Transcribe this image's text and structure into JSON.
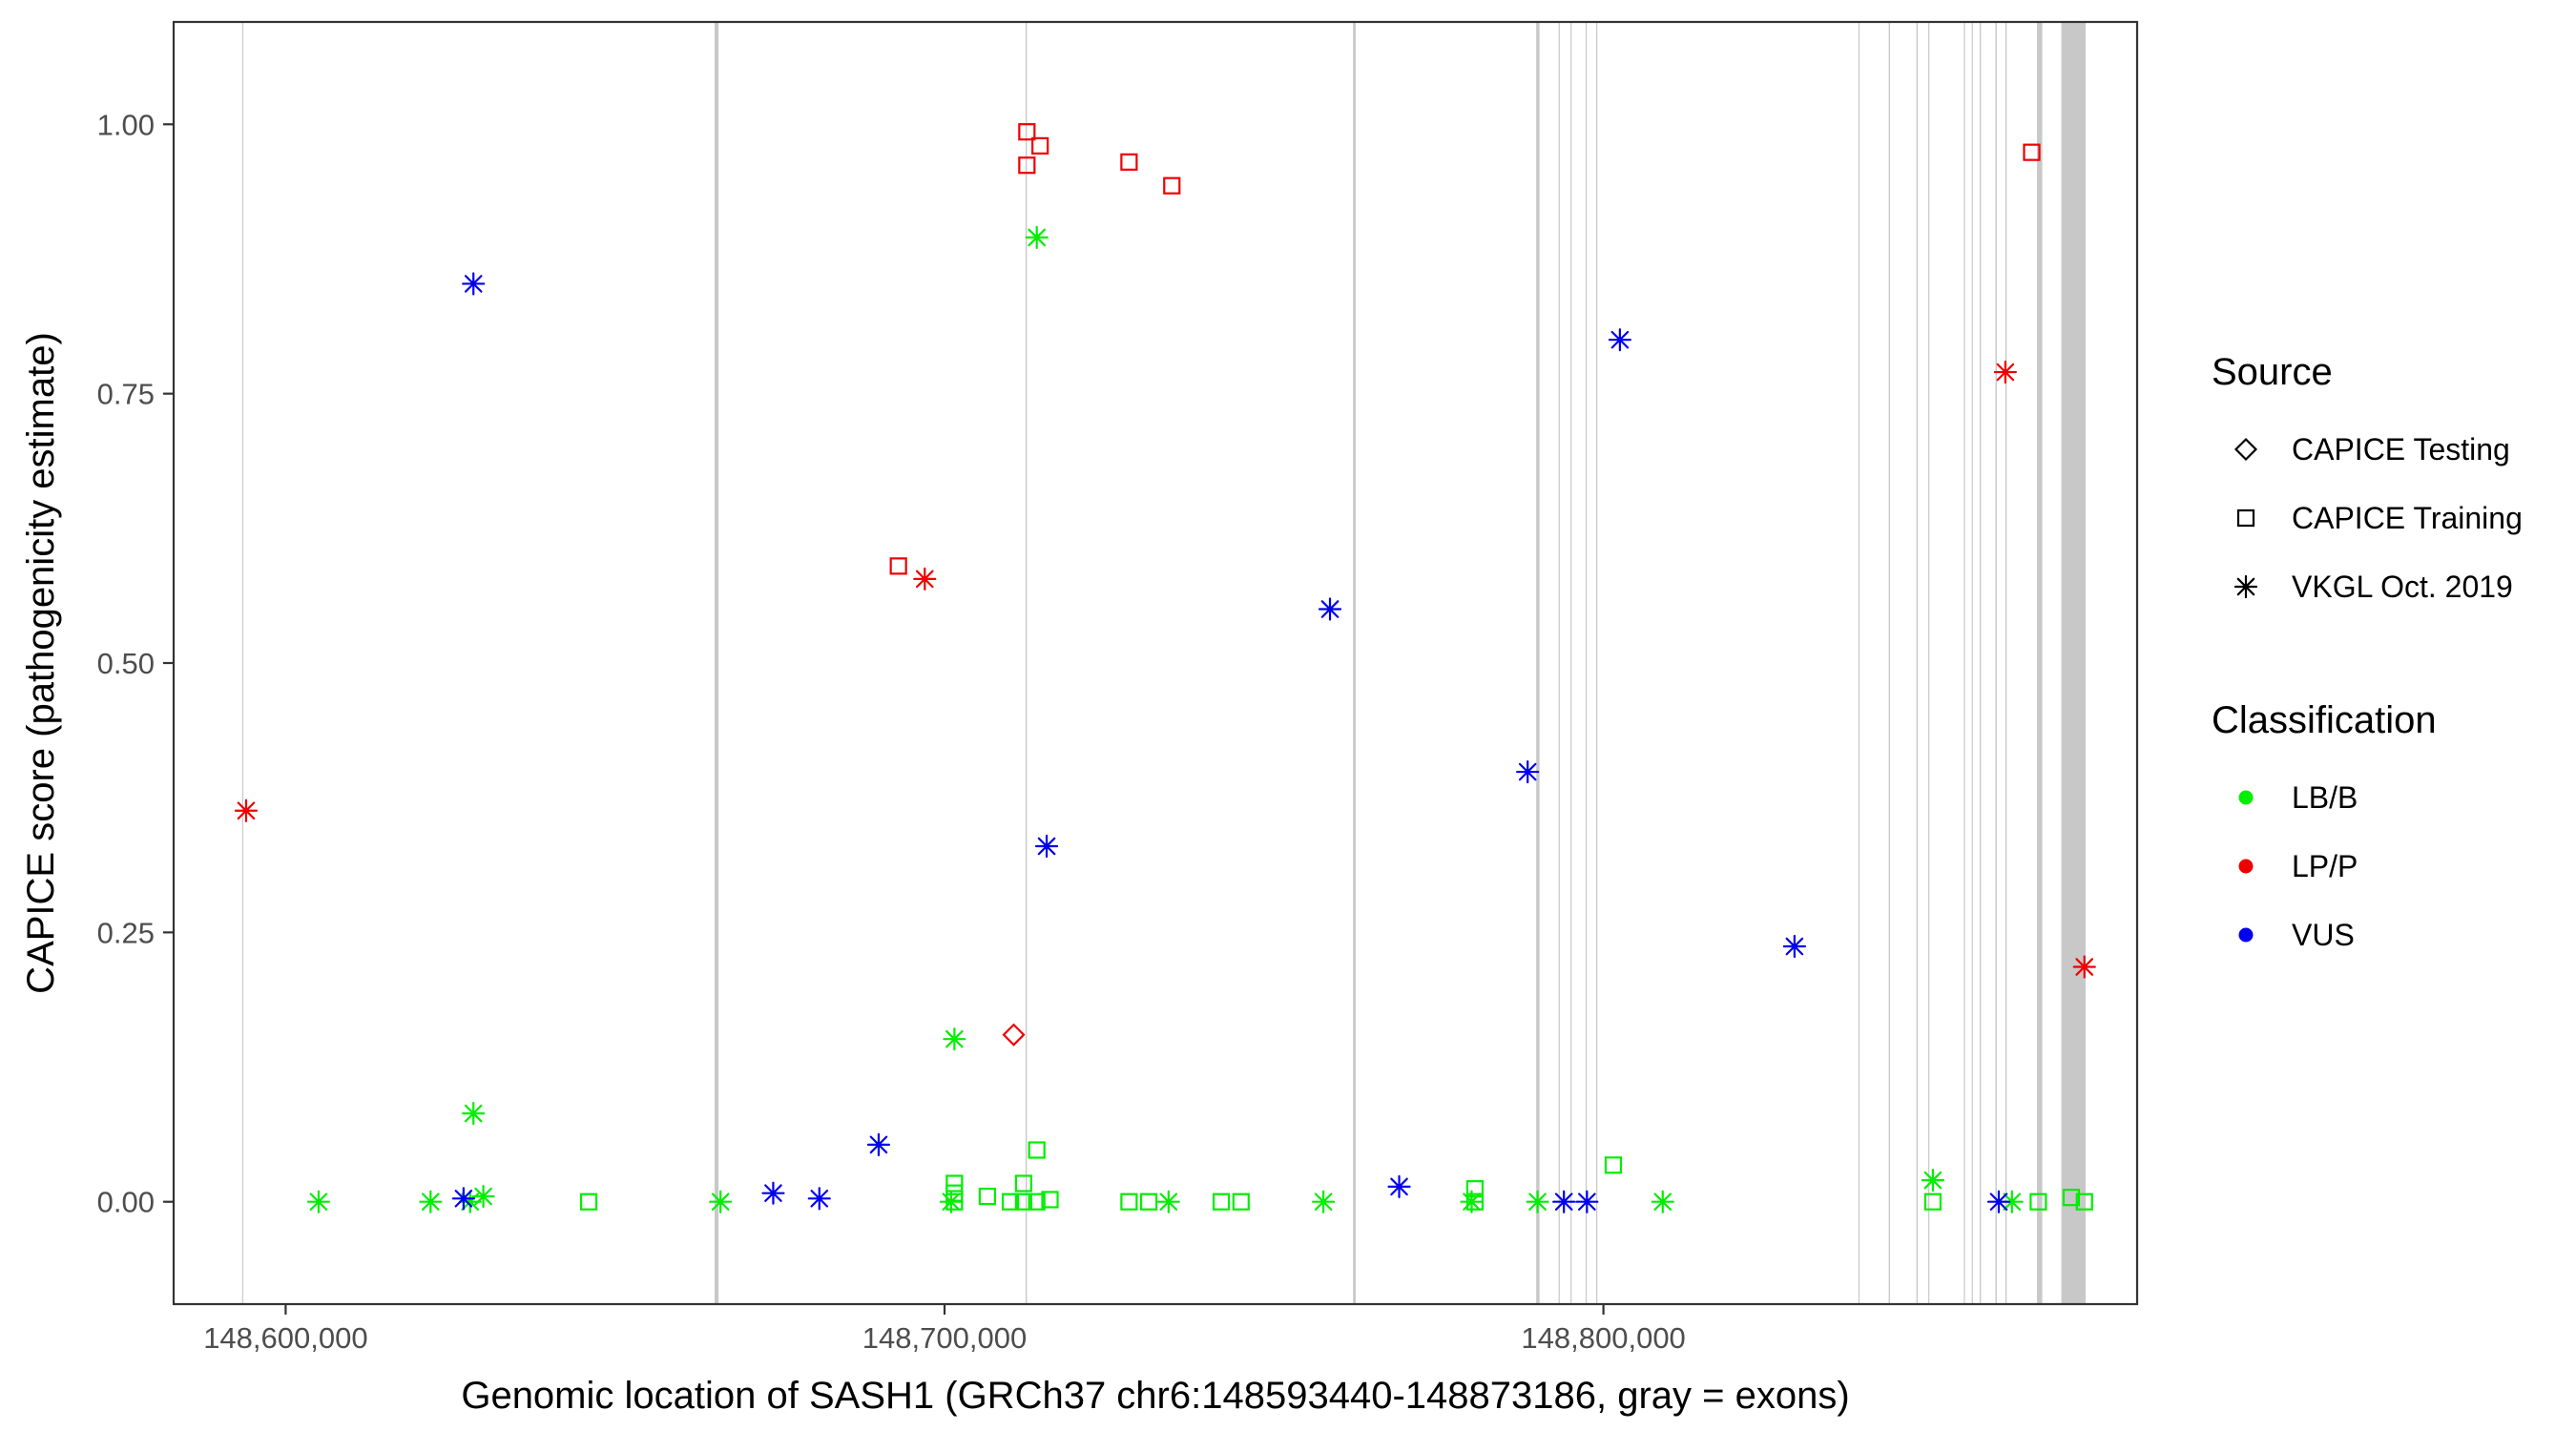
{
  "chart_data": {
    "type": "scatter",
    "xlabel": "Genomic location of SASH1 (GRCh37 chr6:148593440-148873186, gray = exons)",
    "ylabel": "CAPICE score (pathogenicity estimate)",
    "xlim": [
      148583000,
      148881000
    ],
    "ylim": [
      -0.095,
      1.095
    ],
    "x_ticks": [
      148600000,
      148700000,
      148800000
    ],
    "x_tick_labels": [
      "148,600,000",
      "148,700,000",
      "148,800,000"
    ],
    "y_ticks": [
      0,
      0.25,
      0.5,
      0.75,
      1.0
    ],
    "y_tick_labels": [
      "0.00",
      "0.25",
      "0.50",
      "0.75",
      "1.00"
    ],
    "grid": false,
    "legend_position": "right",
    "legends": [
      {
        "title": "Source",
        "items": [
          {
            "label": "CAPICE Testing",
            "shape": "diamond"
          },
          {
            "label": "CAPICE Training",
            "shape": "square"
          },
          {
            "label": "VKGL Oct. 2019",
            "shape": "asterisk"
          }
        ]
      },
      {
        "title": "Classification",
        "items": [
          {
            "label": "LB/B",
            "color": "#00ee00"
          },
          {
            "label": "LP/P",
            "color": "#ee0000"
          },
          {
            "label": "VUS",
            "color": "#0000ee"
          }
        ]
      }
    ],
    "exons": [
      [
        148593400,
        148593500
      ],
      [
        148665100,
        148665700
      ],
      [
        148712300,
        148712500
      ],
      [
        148762000,
        148762400
      ],
      [
        148789800,
        148790300
      ],
      [
        148793200,
        148793300
      ],
      [
        148795000,
        148795100
      ],
      [
        148797300,
        148797400
      ],
      [
        148798900,
        148799000
      ],
      [
        148838700,
        148838800
      ],
      [
        148843300,
        148843500
      ],
      [
        148847500,
        148847700
      ],
      [
        148849300,
        148849400
      ],
      [
        148854700,
        148854800
      ],
      [
        148855900,
        148856000
      ],
      [
        148857100,
        148857300
      ],
      [
        148859500,
        148859700
      ],
      [
        148861000,
        148861200
      ],
      [
        148865800,
        148866600
      ],
      [
        148869500,
        148873186
      ]
    ],
    "series": [
      {
        "name": "VKGL Oct. 2019 LB/B",
        "shape": "asterisk",
        "color": "#00ee00",
        "points": [
          [
            148605000,
            0.0
          ],
          [
            148622000,
            0.0
          ],
          [
            148628000,
            0.0
          ],
          [
            148630000,
            0.005
          ],
          [
            148628500,
            0.082
          ],
          [
            148666000,
            0.0
          ],
          [
            148701000,
            0.0
          ],
          [
            148701500,
            0.151
          ],
          [
            148714000,
            0.895
          ],
          [
            148734000,
            0.0
          ],
          [
            148757500,
            0.0
          ],
          [
            148780000,
            0.0
          ],
          [
            148790000,
            0.0
          ],
          [
            148809000,
            0.0
          ],
          [
            148850000,
            0.02
          ],
          [
            148862000,
            0.0
          ]
        ]
      },
      {
        "name": "VKGL Oct. 2019 LP/P",
        "shape": "asterisk",
        "color": "#ee0000",
        "points": [
          [
            148594000,
            0.363
          ],
          [
            148697000,
            0.578
          ],
          [
            148861000,
            0.77
          ],
          [
            148873000,
            0.218
          ]
        ]
      },
      {
        "name": "VKGL Oct. 2019 VUS",
        "shape": "asterisk",
        "color": "#0000ee",
        "points": [
          [
            148627000,
            0.003
          ],
          [
            148628500,
            0.852
          ],
          [
            148674000,
            0.008
          ],
          [
            148681000,
            0.003
          ],
          [
            148690000,
            0.053
          ],
          [
            148715500,
            0.33
          ],
          [
            148758500,
            0.55
          ],
          [
            148769000,
            0.014
          ],
          [
            148788500,
            0.399
          ],
          [
            148794000,
            0.0
          ],
          [
            148797500,
            0.0
          ],
          [
            148802500,
            0.8
          ],
          [
            148829000,
            0.237
          ],
          [
            148860000,
            0.0
          ]
        ]
      },
      {
        "name": "CAPICE Training LB/B",
        "shape": "square",
        "color": "#00ee00",
        "points": [
          [
            148646000,
            0.0
          ],
          [
            148701500,
            0.0
          ],
          [
            148701500,
            0.008
          ],
          [
            148701500,
            0.017
          ],
          [
            148706500,
            0.005
          ],
          [
            148710000,
            0.0
          ],
          [
            148712000,
            0.0
          ],
          [
            148712000,
            0.017
          ],
          [
            148714000,
            0.0
          ],
          [
            148714000,
            0.048
          ],
          [
            148716000,
            0.002
          ],
          [
            148728000,
            0.0
          ],
          [
            148731000,
            0.0
          ],
          [
            148742000,
            0.0
          ],
          [
            148745000,
            0.0
          ],
          [
            148780500,
            0.0
          ],
          [
            148780500,
            0.012
          ],
          [
            148801500,
            0.034
          ],
          [
            148850000,
            0.0
          ],
          [
            148866000,
            0.0
          ],
          [
            148871000,
            0.004
          ],
          [
            148873000,
            0.0
          ]
        ]
      },
      {
        "name": "CAPICE Training LP/P",
        "shape": "square",
        "color": "#ee0000",
        "points": [
          [
            148693000,
            0.59
          ],
          [
            148712500,
            0.993
          ],
          [
            148712500,
            0.962
          ],
          [
            148714500,
            0.98
          ],
          [
            148728000,
            0.965
          ],
          [
            148734500,
            0.943
          ],
          [
            148865000,
            0.974
          ]
        ]
      },
      {
        "name": "CAPICE Testing LP/P",
        "shape": "diamond",
        "color": "#ee0000",
        "points": [
          [
            148710500,
            0.155
          ]
        ]
      }
    ]
  }
}
